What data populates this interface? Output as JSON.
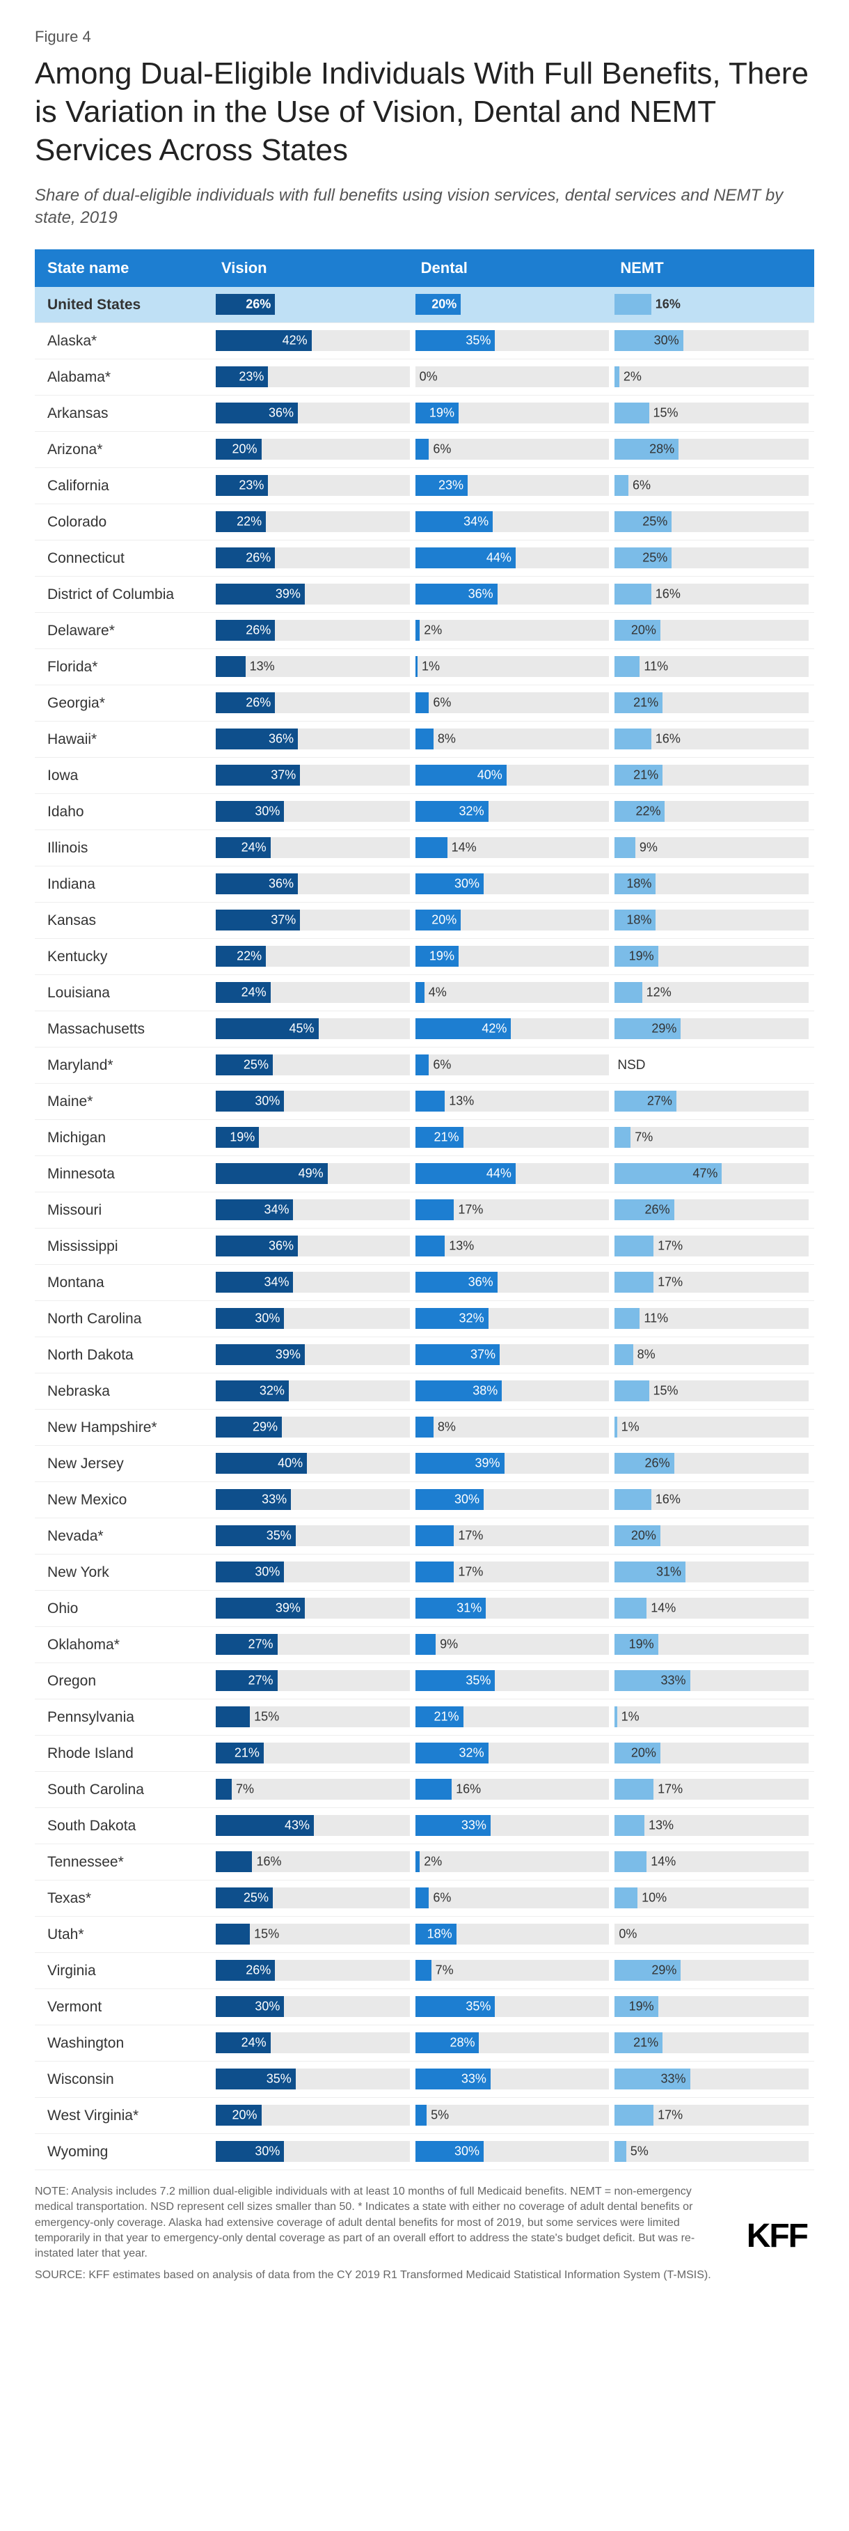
{
  "figure_label": "Figure 4",
  "title": "Among Dual-Eligible Individuals With Full Benefits, There is Variation in the Use of Vision, Dental and NEMT Services Across States",
  "subtitle": "Share of dual-eligible individuals with full benefits using vision services, dental services and NEMT by state, 2019",
  "columns": {
    "state": "State name",
    "vision": "Vision",
    "dental": "Dental",
    "nemt": "NEMT"
  },
  "colors": {
    "header_bg": "#1d7ed1",
    "us_row_bg": "#bfe0f5",
    "track_bg": "#e9e9e9",
    "vision_bar": "#0e4f8c",
    "dental_bar": "#1d7ed1",
    "nemt_bar": "#7bbce8",
    "text_light": "#ffffff",
    "text_dark": "#333333"
  },
  "bar_scale_max": 85,
  "label_inside_threshold": 18,
  "rows": [
    {
      "state": "United States",
      "vision": 26,
      "dental": 20,
      "nemt": 16,
      "is_us": true
    },
    {
      "state": "Alaska*",
      "vision": 42,
      "dental": 35,
      "nemt": 30
    },
    {
      "state": "Alabama*",
      "vision": 23,
      "dental": 0,
      "nemt": 2
    },
    {
      "state": "Arkansas",
      "vision": 36,
      "dental": 19,
      "nemt": 15
    },
    {
      "state": "Arizona*",
      "vision": 20,
      "dental": 6,
      "nemt": 28
    },
    {
      "state": "California",
      "vision": 23,
      "dental": 23,
      "nemt": 6
    },
    {
      "state": "Colorado",
      "vision": 22,
      "dental": 34,
      "nemt": 25
    },
    {
      "state": "Connecticut",
      "vision": 26,
      "dental": 44,
      "nemt": 25
    },
    {
      "state": "District of Columbia",
      "vision": 39,
      "dental": 36,
      "nemt": 16
    },
    {
      "state": "Delaware*",
      "vision": 26,
      "dental": 2,
      "nemt": 20
    },
    {
      "state": "Florida*",
      "vision": 13,
      "dental": 1,
      "nemt": 11
    },
    {
      "state": "Georgia*",
      "vision": 26,
      "dental": 6,
      "nemt": 21
    },
    {
      "state": "Hawaii*",
      "vision": 36,
      "dental": 8,
      "nemt": 16
    },
    {
      "state": "Iowa",
      "vision": 37,
      "dental": 40,
      "nemt": 21
    },
    {
      "state": "Idaho",
      "vision": 30,
      "dental": 32,
      "nemt": 22
    },
    {
      "state": "Illinois",
      "vision": 24,
      "dental": 14,
      "nemt": 9
    },
    {
      "state": "Indiana",
      "vision": 36,
      "dental": 30,
      "nemt": 18
    },
    {
      "state": "Kansas",
      "vision": 37,
      "dental": 20,
      "nemt": 18
    },
    {
      "state": "Kentucky",
      "vision": 22,
      "dental": 19,
      "nemt": 19
    },
    {
      "state": "Louisiana",
      "vision": 24,
      "dental": 4,
      "nemt": 12
    },
    {
      "state": "Massachusetts",
      "vision": 45,
      "dental": 42,
      "nemt": 29
    },
    {
      "state": "Maryland*",
      "vision": 25,
      "dental": 6,
      "nemt": "NSD"
    },
    {
      "state": "Maine*",
      "vision": 30,
      "dental": 13,
      "nemt": 27
    },
    {
      "state": "Michigan",
      "vision": 19,
      "dental": 21,
      "nemt": 7
    },
    {
      "state": "Minnesota",
      "vision": 49,
      "dental": 44,
      "nemt": 47
    },
    {
      "state": "Missouri",
      "vision": 34,
      "dental": 17,
      "nemt": 26
    },
    {
      "state": "Mississippi",
      "vision": 36,
      "dental": 13,
      "nemt": 17
    },
    {
      "state": "Montana",
      "vision": 34,
      "dental": 36,
      "nemt": 17
    },
    {
      "state": "North Carolina",
      "vision": 30,
      "dental": 32,
      "nemt": 11
    },
    {
      "state": "North Dakota",
      "vision": 39,
      "dental": 37,
      "nemt": 8
    },
    {
      "state": "Nebraska",
      "vision": 32,
      "dental": 38,
      "nemt": 15
    },
    {
      "state": "New Hampshire*",
      "vision": 29,
      "dental": 8,
      "nemt": 1
    },
    {
      "state": "New Jersey",
      "vision": 40,
      "dental": 39,
      "nemt": 26
    },
    {
      "state": "New Mexico",
      "vision": 33,
      "dental": 30,
      "nemt": 16
    },
    {
      "state": "Nevada*",
      "vision": 35,
      "dental": 17,
      "nemt": 20
    },
    {
      "state": "New York",
      "vision": 30,
      "dental": 17,
      "nemt": 31
    },
    {
      "state": "Ohio",
      "vision": 39,
      "dental": 31,
      "nemt": 14
    },
    {
      "state": "Oklahoma*",
      "vision": 27,
      "dental": 9,
      "nemt": 19
    },
    {
      "state": "Oregon",
      "vision": 27,
      "dental": 35,
      "nemt": 33
    },
    {
      "state": "Pennsylvania",
      "vision": 15,
      "dental": 21,
      "nemt": 1
    },
    {
      "state": "Rhode Island",
      "vision": 21,
      "dental": 32,
      "nemt": 20
    },
    {
      "state": "South Carolina",
      "vision": 7,
      "dental": 16,
      "nemt": 17
    },
    {
      "state": "South Dakota",
      "vision": 43,
      "dental": 33,
      "nemt": 13
    },
    {
      "state": "Tennessee*",
      "vision": 16,
      "dental": 2,
      "nemt": 14
    },
    {
      "state": "Texas*",
      "vision": 25,
      "dental": 6,
      "nemt": 10
    },
    {
      "state": "Utah*",
      "vision": 15,
      "dental": 18,
      "nemt": 0
    },
    {
      "state": "Virginia",
      "vision": 26,
      "dental": 7,
      "nemt": 29
    },
    {
      "state": "Vermont",
      "vision": 30,
      "dental": 35,
      "nemt": 19
    },
    {
      "state": "Washington",
      "vision": 24,
      "dental": 28,
      "nemt": 21
    },
    {
      "state": "Wisconsin",
      "vision": 35,
      "dental": 33,
      "nemt": 33
    },
    {
      "state": "West Virginia*",
      "vision": 20,
      "dental": 5,
      "nemt": 17
    },
    {
      "state": "Wyoming",
      "vision": 30,
      "dental": 30,
      "nemt": 5
    }
  ],
  "note": "NOTE: Analysis includes 7.2 million dual-eligible individuals with at least 10 months of full Medicaid benefits. NEMT = non-emergency medical transportation. NSD represent cell sizes smaller than 50. * Indicates a state with either no coverage of adult dental benefits or emergency-only coverage. Alaska had extensive coverage of adult dental benefits for most of 2019, but some services were limited temporarily in that year to emergency-only dental coverage as part of an overall effort to address the state's budget deficit. But was re-instated later that year.",
  "source": "SOURCE: KFF estimates based on analysis of data from the CY 2019 R1 Transformed Medicaid Statistical Information System (T-MSIS).",
  "logo": "KFF"
}
